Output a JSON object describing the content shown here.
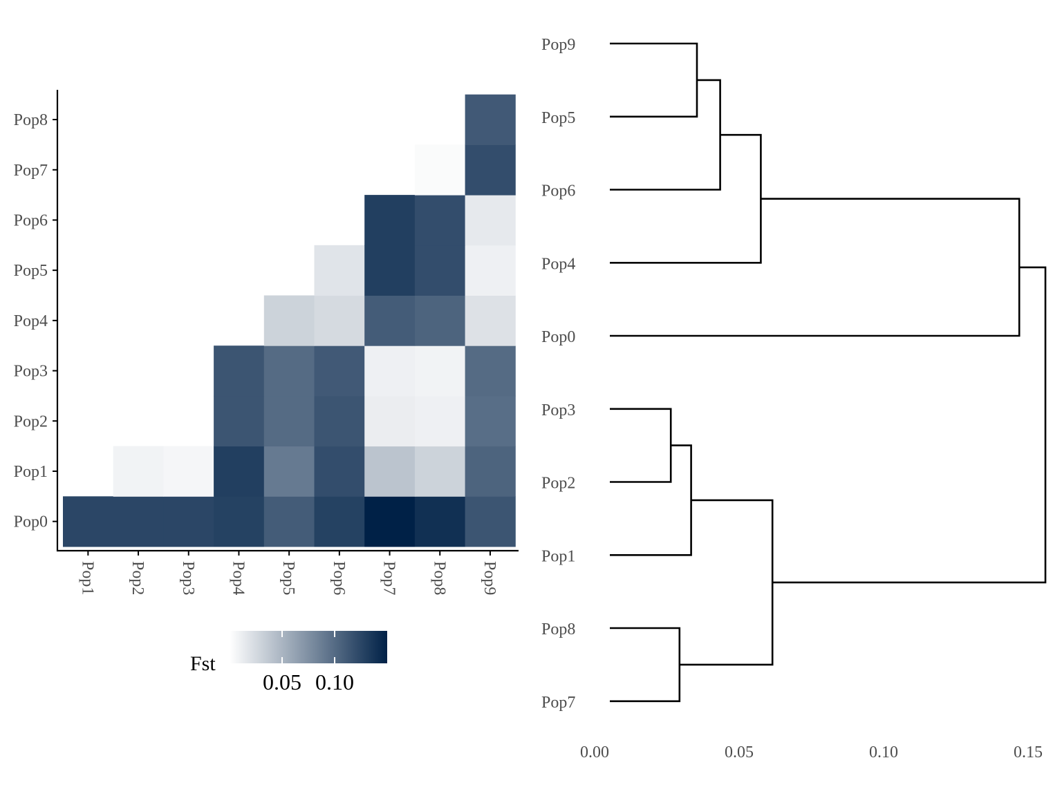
{
  "chart_data": [
    {
      "type": "heatmap",
      "x_categories": [
        "Pop1",
        "Pop2",
        "Pop3",
        "Pop4",
        "Pop5",
        "Pop6",
        "Pop7",
        "Pop8",
        "Pop9"
      ],
      "y_categories": [
        "Pop0",
        "Pop1",
        "Pop2",
        "Pop3",
        "Pop4",
        "Pop5",
        "Pop6",
        "Pop7",
        "Pop8"
      ],
      "values": [
        [
          0.125,
          0.125,
          0.125,
          0.128,
          0.11,
          0.128,
          0.15,
          0.14,
          0.115
        ],
        [
          null,
          0.008,
          0.006,
          0.13,
          0.09,
          0.12,
          0.04,
          0.03,
          0.105
        ],
        [
          null,
          null,
          null,
          0.115,
          0.1,
          0.115,
          0.012,
          0.01,
          0.098
        ],
        [
          null,
          null,
          null,
          0.115,
          0.1,
          0.112,
          0.01,
          0.008,
          0.1
        ],
        [
          null,
          null,
          null,
          null,
          0.03,
          0.025,
          0.11,
          0.105,
          0.02
        ],
        [
          null,
          null,
          null,
          null,
          null,
          0.018,
          0.13,
          0.12,
          0.01
        ],
        [
          null,
          null,
          null,
          null,
          null,
          null,
          0.13,
          0.12,
          0.015
        ],
        [
          null,
          null,
          null,
          null,
          null,
          null,
          null,
          0.003,
          0.12
        ],
        [
          null,
          null,
          null,
          null,
          null,
          null,
          null,
          null,
          0.112
        ]
      ],
      "legend": {
        "title": "Fst",
        "ticks": [
          0.05,
          0.1
        ],
        "tick_labels": [
          "0.05",
          "0.10"
        ],
        "range": [
          0,
          0.15
        ],
        "low_color": "#ffffff",
        "high_color": "#002147",
        "placement": "bottom"
      }
    },
    {
      "type": "dendrogram",
      "leaves": [
        "Pop9",
        "Pop5",
        "Pop6",
        "Pop4",
        "Pop0",
        "Pop3",
        "Pop2",
        "Pop1",
        "Pop8",
        "Pop7"
      ],
      "x_ticks": [
        0.0,
        0.05,
        0.1,
        0.15
      ],
      "x_tick_labels": [
        "0.00",
        "0.05",
        "0.10",
        "0.15"
      ],
      "xlim": [
        0,
        0.15
      ],
      "merges": [
        {
          "children": [
            "Pop9",
            "Pop5"
          ],
          "height": 0.03
        },
        {
          "children": [
            "Pop9+Pop5",
            "Pop6"
          ],
          "height": 0.038
        },
        {
          "children": [
            "Pop9+Pop5+Pop6",
            "Pop4"
          ],
          "height": 0.052
        },
        {
          "children": [
            "Pop9+Pop5+Pop6+Pop4",
            "Pop0"
          ],
          "height": 0.141
        },
        {
          "children": [
            "Pop3",
            "Pop2"
          ],
          "height": 0.021
        },
        {
          "children": [
            "Pop3+Pop2",
            "Pop1"
          ],
          "height": 0.028
        },
        {
          "children": [
            "Pop8",
            "Pop7"
          ],
          "height": 0.024
        },
        {
          "children": [
            "Pop3+Pop2+Pop1",
            "Pop8+Pop7"
          ],
          "height": 0.056
        },
        {
          "children": [
            "upper-cluster",
            "lower-cluster"
          ],
          "height": 0.15
        }
      ]
    }
  ]
}
